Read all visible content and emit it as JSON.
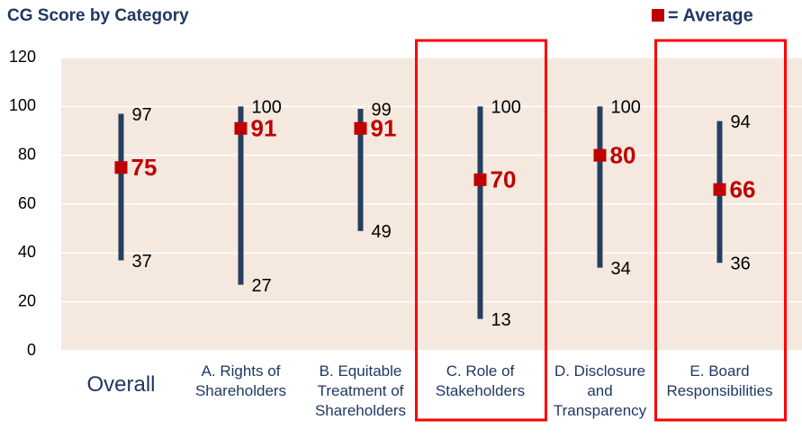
{
  "chart_data": {
    "type": "range",
    "title": "CG Score by Category",
    "legend_label": "= Average",
    "categories": [
      "Overall",
      "A. Rights of Shareholders",
      "B. Equitable Treatment of Shareholders",
      "C. Role of Stakeholders",
      "D. Disclosure and Transparency",
      "E. Board Responsibilities"
    ],
    "high": [
      97,
      100,
      99,
      100,
      100,
      94
    ],
    "low": [
      37,
      27,
      49,
      13,
      34,
      36
    ],
    "average": [
      75,
      91,
      91,
      70,
      80,
      66
    ],
    "range_color": "#243f60",
    "average_color": "#c00000",
    "highlight": [
      3,
      5
    ],
    "ylim": [
      0,
      120
    ],
    "yticks": [
      0,
      20,
      40,
      60,
      80,
      100,
      120
    ],
    "grid": true
  }
}
